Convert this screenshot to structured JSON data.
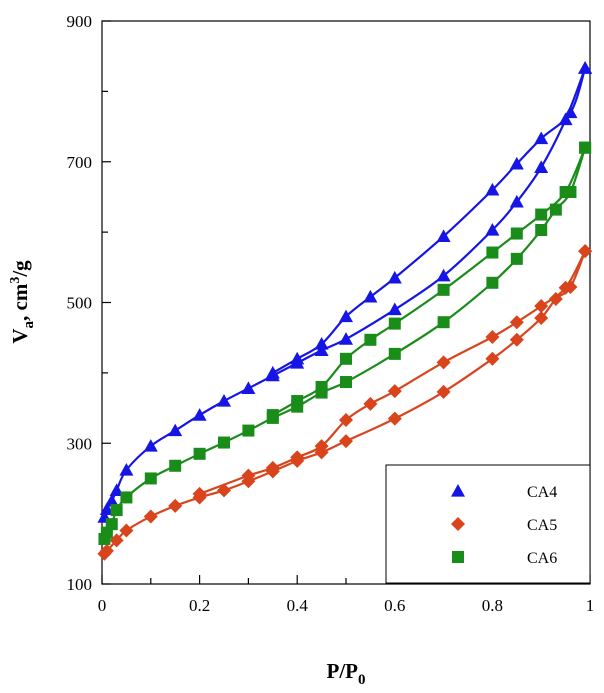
{
  "chart_data": {
    "type": "scatter",
    "xlabel": "P/P",
    "xlabel_sub": "0",
    "ylabel": "V",
    "ylabel_sub": "a",
    "ylabel_rest": ", cm",
    "ylabel_sup": "3",
    "ylabel_tail": "/g",
    "xlim": [
      0,
      1
    ],
    "ylim": [
      100,
      900
    ],
    "xticks": [
      0,
      0.2,
      0.4,
      0.6,
      0.8,
      1
    ],
    "xtick_labels": [
      "0",
      "0.2",
      "0.4",
      "0.6",
      "0.8",
      "1"
    ],
    "yticks": [
      100,
      300,
      500,
      700,
      900
    ],
    "ytick_labels": [
      "100",
      "300",
      "500",
      "700",
      "900"
    ],
    "legend_position": "bottom-right",
    "series": [
      {
        "name": "CA4",
        "color": "#1515e6",
        "marker": "triangle",
        "adsorption": [
          [
            0.005,
            195
          ],
          [
            0.01,
            206
          ],
          [
            0.02,
            218
          ],
          [
            0.03,
            233
          ],
          [
            0.05,
            262
          ],
          [
            0.1,
            296
          ],
          [
            0.15,
            318
          ],
          [
            0.2,
            340
          ],
          [
            0.25,
            360
          ],
          [
            0.3,
            378
          ],
          [
            0.35,
            396
          ],
          [
            0.4,
            414
          ],
          [
            0.45,
            432
          ],
          [
            0.5,
            448
          ],
          [
            0.6,
            490
          ],
          [
            0.7,
            538
          ],
          [
            0.8,
            603
          ],
          [
            0.85,
            643
          ],
          [
            0.9,
            692
          ],
          [
            0.95,
            760
          ],
          [
            0.99,
            833
          ]
        ],
        "desorption": [
          [
            0.99,
            833
          ],
          [
            0.96,
            770
          ],
          [
            0.9,
            733
          ],
          [
            0.85,
            697
          ],
          [
            0.8,
            660
          ],
          [
            0.7,
            594
          ],
          [
            0.6,
            535
          ],
          [
            0.55,
            508
          ],
          [
            0.5,
            480
          ],
          [
            0.45,
            441
          ],
          [
            0.4,
            420
          ],
          [
            0.35,
            400
          ]
        ]
      },
      {
        "name": "CA5",
        "color": "#d9441c",
        "marker": "diamond",
        "adsorption": [
          [
            0.005,
            143
          ],
          [
            0.01,
            147
          ],
          [
            0.03,
            162
          ],
          [
            0.05,
            176
          ],
          [
            0.1,
            196
          ],
          [
            0.15,
            211
          ],
          [
            0.2,
            223
          ],
          [
            0.25,
            233
          ],
          [
            0.3,
            246
          ],
          [
            0.35,
            260
          ],
          [
            0.4,
            275
          ],
          [
            0.45,
            287
          ],
          [
            0.5,
            303
          ],
          [
            0.6,
            335
          ],
          [
            0.7,
            373
          ],
          [
            0.8,
            420
          ],
          [
            0.85,
            447
          ],
          [
            0.9,
            478
          ],
          [
            0.93,
            505
          ],
          [
            0.96,
            522
          ],
          [
            0.99,
            573
          ]
        ],
        "desorption": [
          [
            0.99,
            573
          ],
          [
            0.95,
            521
          ],
          [
            0.9,
            495
          ],
          [
            0.85,
            472
          ],
          [
            0.8,
            451
          ],
          [
            0.7,
            415
          ],
          [
            0.6,
            374
          ],
          [
            0.55,
            356
          ],
          [
            0.5,
            333
          ],
          [
            0.45,
            296
          ],
          [
            0.4,
            280
          ],
          [
            0.35,
            265
          ],
          [
            0.3,
            254
          ],
          [
            0.2,
            228
          ]
        ]
      },
      {
        "name": "CA6",
        "color": "#1a8c1a",
        "marker": "square",
        "adsorption": [
          [
            0.005,
            164
          ],
          [
            0.01,
            173
          ],
          [
            0.02,
            185
          ],
          [
            0.03,
            205
          ],
          [
            0.05,
            223
          ],
          [
            0.1,
            250
          ],
          [
            0.15,
            268
          ],
          [
            0.2,
            285
          ],
          [
            0.25,
            301
          ],
          [
            0.3,
            318
          ],
          [
            0.35,
            336
          ],
          [
            0.4,
            352
          ],
          [
            0.45,
            372
          ],
          [
            0.5,
            387
          ],
          [
            0.6,
            427
          ],
          [
            0.7,
            472
          ],
          [
            0.8,
            528
          ],
          [
            0.85,
            562
          ],
          [
            0.9,
            603
          ],
          [
            0.93,
            632
          ],
          [
            0.96,
            657
          ],
          [
            0.99,
            720
          ]
        ],
        "desorption": [
          [
            0.99,
            720
          ],
          [
            0.95,
            657
          ],
          [
            0.9,
            625
          ],
          [
            0.85,
            598
          ],
          [
            0.8,
            571
          ],
          [
            0.7,
            518
          ],
          [
            0.6,
            470
          ],
          [
            0.55,
            447
          ],
          [
            0.5,
            420
          ],
          [
            0.45,
            380
          ],
          [
            0.4,
            360
          ],
          [
            0.35,
            340
          ]
        ]
      }
    ]
  }
}
